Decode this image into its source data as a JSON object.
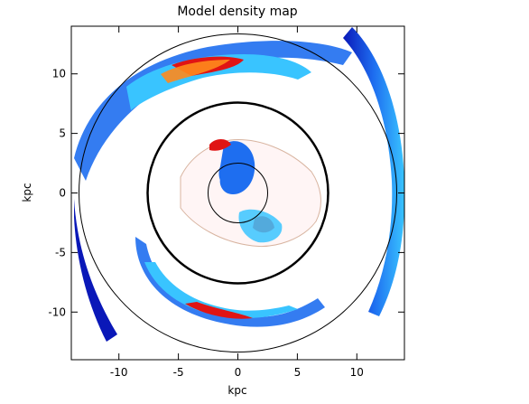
{
  "chart_data": {
    "type": "heatmap",
    "title": "Model density map",
    "xlabel": "kpc",
    "ylabel": "kpc",
    "xlim": [
      -14,
      14
    ],
    "ylim": [
      -14,
      14
    ],
    "xticks": [
      -10,
      -5,
      0,
      5,
      10
    ],
    "yticks": [
      -10,
      -5,
      0,
      5,
      10
    ],
    "xtick_labels": [
      "-10",
      "-5",
      "0",
      "5",
      "10"
    ],
    "ytick_labels": [
      "-10",
      "-5",
      "0",
      "5",
      "10"
    ],
    "grid": false,
    "legend": "none",
    "colormap": [
      "#0a18b8",
      "#1e6ef0",
      "#39c4ff",
      "#6de39a",
      "#f3ec3a",
      "#ff8a1c",
      "#e01414",
      "#fff5f5"
    ],
    "circles": [
      {
        "center": [
          0,
          0
        ],
        "radius": 13.5,
        "thickness": "thin"
      },
      {
        "center": [
          0,
          0
        ],
        "radius_x": 7.6,
        "radius_y": 7.6,
        "thickness": "thick"
      },
      {
        "center": [
          0,
          0
        ],
        "radius": 2.5,
        "thickness": "thin"
      }
    ]
  }
}
